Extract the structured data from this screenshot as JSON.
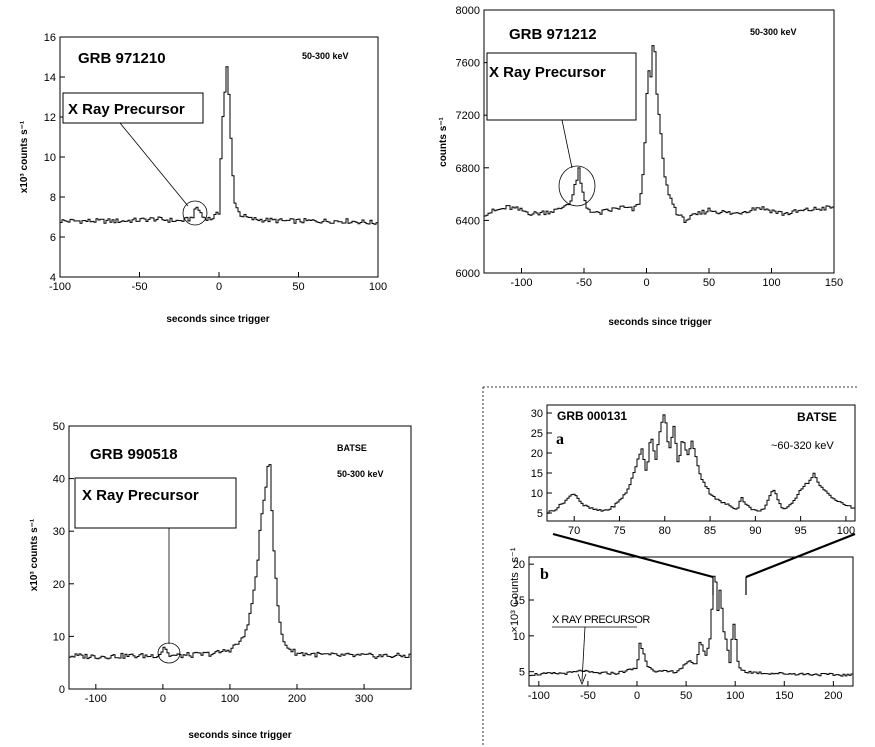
{
  "chart_data": [
    {
      "id": "p1",
      "type": "line",
      "title": "GRB 971210",
      "band": "50-300 keV",
      "annotation": "X Ray Precursor",
      "xlabel": "seconds since trigger",
      "ylabel": "x10³ counts s⁻¹",
      "xlim": [
        -100,
        100
      ],
      "ylim": [
        4,
        16
      ],
      "xticks": [
        -100,
        -50,
        0,
        50,
        100
      ],
      "yticks": [
        4,
        6,
        8,
        10,
        12,
        14,
        16
      ],
      "series": [
        {
          "x": [
            -100,
            -80,
            -60,
            -40,
            -25,
            -18,
            -16,
            -14,
            -12,
            -10,
            -5,
            0,
            1,
            2,
            3,
            4,
            5,
            6,
            7,
            8,
            9,
            10,
            12,
            14,
            20,
            40,
            60,
            80,
            100
          ],
          "values": [
            6.8,
            6.8,
            6.8,
            6.9,
            6.8,
            6.9,
            7.1,
            7.5,
            7.3,
            7.0,
            6.9,
            7.2,
            9.5,
            11.5,
            12.5,
            13.5,
            14.5,
            13.5,
            12.0,
            10.0,
            8.8,
            7.8,
            7.3,
            7.1,
            6.9,
            6.8,
            6.8,
            6.8,
            6.7
          ]
        }
      ]
    },
    {
      "id": "p2",
      "type": "line",
      "title": "GRB 971212",
      "band": "50-300 keV",
      "annotation": "X Ray Precursor",
      "xlabel": "seconds since trigger",
      "ylabel": "counts s⁻¹",
      "xlim": [
        -130,
        150
      ],
      "ylim": [
        6000,
        8000
      ],
      "xticks": [
        -100,
        -50,
        0,
        50,
        100,
        150
      ],
      "yticks": [
        6000,
        6400,
        6800,
        7200,
        7600,
        8000
      ],
      "series": [
        {
          "x": [
            -130,
            -110,
            -90,
            -70,
            -60,
            -56,
            -54,
            -52,
            -48,
            -40,
            -20,
            -10,
            -5,
            -2,
            0,
            2,
            4,
            6,
            8,
            10,
            12,
            15,
            20,
            25,
            30,
            50,
            70,
            90,
            110,
            130,
            150
          ],
          "values": [
            6450,
            6500,
            6450,
            6480,
            6550,
            6700,
            6780,
            6650,
            6500,
            6450,
            6500,
            6480,
            6550,
            6800,
            7300,
            7550,
            7500,
            7850,
            7400,
            7200,
            7000,
            6700,
            6550,
            6450,
            6400,
            6480,
            6450,
            6500,
            6450,
            6480,
            6500
          ]
        }
      ]
    },
    {
      "id": "p3",
      "type": "line",
      "title": "GRB 990518",
      "band": "50-300 keV",
      "source": "BATSE",
      "annotation": "X Ray Precursor",
      "xlabel": "seconds since trigger",
      "ylabel": "x10³ counts s⁻¹",
      "xlim": [
        -140,
        370
      ],
      "ylim": [
        0,
        50
      ],
      "xticks": [
        -100,
        0,
        100,
        200,
        300
      ],
      "yticks": [
        0,
        10,
        20,
        30,
        40,
        50
      ],
      "series": [
        {
          "x": [
            -140,
            -100,
            -50,
            -20,
            -5,
            0,
            3,
            6,
            10,
            20,
            50,
            80,
            100,
            120,
            130,
            140,
            145,
            150,
            155,
            158,
            160,
            162,
            165,
            170,
            175,
            180,
            190,
            200,
            250,
            300,
            370
          ],
          "values": [
            6.3,
            6.2,
            6.3,
            6.3,
            6.5,
            7.5,
            8.5,
            7.0,
            6.4,
            6.3,
            6.5,
            6.8,
            7.5,
            9.5,
            14,
            22,
            30,
            35,
            40,
            44,
            43,
            36,
            28,
            18,
            12,
            9,
            7.5,
            6.8,
            6.4,
            6.3,
            6.3
          ]
        }
      ]
    },
    {
      "id": "p4a",
      "type": "line",
      "title": "GRB 000131",
      "panel_label": "a",
      "source": "BATSE",
      "band": "~60-320 keV",
      "xlim": [
        67,
        101
      ],
      "ylim": [
        3,
        32
      ],
      "xticks": [
        70,
        75,
        80,
        85,
        90,
        95,
        100
      ],
      "yticks": [
        5,
        10,
        15,
        20,
        25,
        30
      ],
      "series": [
        {
          "x": [
            67,
            68,
            69,
            70,
            71,
            72,
            73,
            74,
            75,
            76,
            77,
            77.5,
            78,
            78.5,
            79,
            79.5,
            80,
            80.5,
            81,
            81.5,
            82,
            82.5,
            83,
            84,
            85,
            86,
            87,
            88,
            88.5,
            89,
            90,
            91,
            92,
            93,
            94,
            95,
            96,
            96.5,
            97,
            98,
            99,
            100,
            101
          ],
          "values": [
            5,
            6,
            8,
            10,
            7,
            6,
            5.5,
            6,
            8,
            11,
            18,
            21,
            15,
            25,
            18,
            26,
            30,
            20,
            27,
            17,
            24,
            19,
            23,
            14,
            10,
            8,
            7,
            6,
            9,
            7,
            5.5,
            6,
            11,
            6,
            7,
            11,
            13,
            15,
            12,
            10,
            8,
            7,
            6
          ]
        }
      ]
    },
    {
      "id": "p4b",
      "type": "line",
      "panel_label": "b",
      "annotation": "X RAY PRECURSOR",
      "ylabel": "×10³ Counts · s⁻¹",
      "xlim": [
        -110,
        220
      ],
      "ylim": [
        3,
        21
      ],
      "xticks": [
        -100,
        -50,
        0,
        50,
        100,
        150,
        200
      ],
      "yticks": [
        5,
        10,
        15,
        20
      ],
      "series": [
        {
          "x": [
            -110,
            -90,
            -70,
            -60,
            -55,
            -50,
            -40,
            -20,
            0,
            3,
            6,
            10,
            20,
            40,
            55,
            60,
            65,
            70,
            75,
            78,
            80,
            82,
            85,
            88,
            90,
            95,
            98,
            100,
            102,
            105,
            110,
            130,
            160,
            190,
            220
          ],
          "values": [
            4.6,
            4.7,
            4.8,
            5.0,
            5.2,
            4.9,
            4.8,
            4.8,
            5.5,
            9.0,
            8.0,
            6.0,
            5.0,
            5.0,
            6.5,
            6.0,
            9.5,
            7.0,
            10,
            18,
            19,
            13,
            17,
            11,
            10,
            6,
            12,
            11,
            7,
            5.5,
            5.0,
            4.8,
            4.7,
            4.6,
            4.5
          ]
        }
      ]
    }
  ]
}
